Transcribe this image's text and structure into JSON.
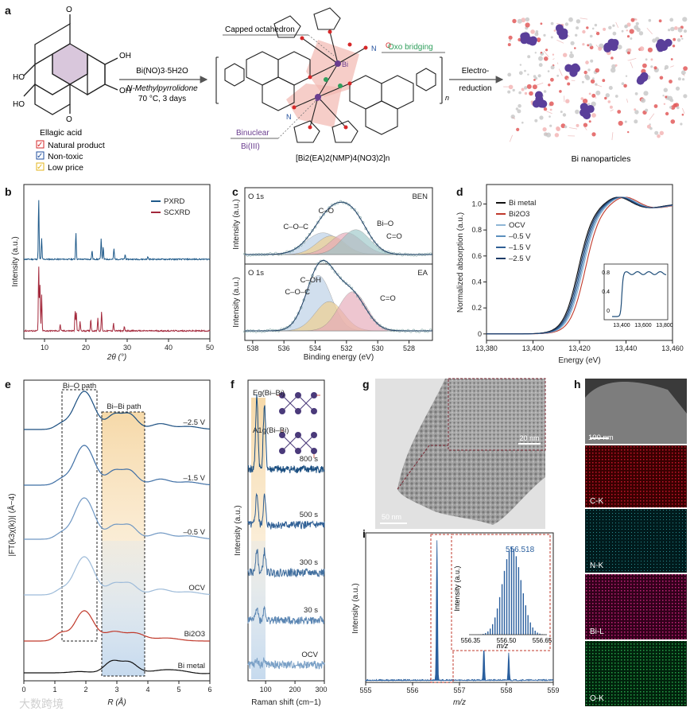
{
  "panel_labels": [
    "a",
    "b",
    "c",
    "d",
    "e",
    "f",
    "g",
    "h",
    "i"
  ],
  "panel_a": {
    "reactant_name": "Ellagic acid",
    "oh_labels": [
      "OH",
      "HO",
      "HO",
      "OH"
    ],
    "ring_o": [
      "O",
      "O",
      "O",
      "O"
    ],
    "reagent": "Bi(NO)3·5H2O",
    "solvent": "N-Methylpyrrolidone",
    "conditions": "70 °C, 3 days",
    "checklist": [
      {
        "mark": "✓",
        "text": "Natural product",
        "color": "#d62728"
      },
      {
        "mark": "✓",
        "text": "Non-toxic",
        "color": "#1f4e9c"
      },
      {
        "mark": "✓",
        "text": "Low price",
        "color": "#e3b51c"
      }
    ],
    "capped_octahedron": "Capped octahedron",
    "oxo_bridging": "Oxo bridging",
    "binuclear": "Binuclear",
    "bi_iii": "Bi(III)",
    "bi_atom": "Bi",
    "n_atom": "N",
    "o_atom": "O",
    "polymer_n": "n",
    "formula": "[Bi2(EA)2(NMP)4(NO3)2]n",
    "arrow2_line1": "Electro-",
    "arrow2_line2": "reduction",
    "product": "Bi nanoparticles"
  },
  "chart_data": [
    {
      "panel": "b",
      "type": "line",
      "xlabel": "2θ (°)",
      "ylabel": "Intensity (a.u.)",
      "xlim": [
        5,
        50
      ],
      "xticks": [
        10,
        20,
        30,
        40,
        50
      ],
      "series": [
        {
          "name": "PXRD",
          "color": "#1f5a8a",
          "peaks": [
            [
              8.6,
              1.0
            ],
            [
              9.3,
              0.35
            ],
            [
              17.6,
              0.45
            ],
            [
              21.5,
              0.15
            ],
            [
              23.7,
              0.35
            ],
            [
              24.2,
              0.2
            ],
            [
              26.8,
              0.18
            ],
            [
              29.5,
              0.08
            ],
            [
              35.0,
              0.05
            ]
          ]
        },
        {
          "name": "SCXRD",
          "color": "#a3283b",
          "peaks": [
            [
              8.6,
              1.0
            ],
            [
              8.9,
              0.7
            ],
            [
              9.3,
              0.55
            ],
            [
              13.8,
              0.1
            ],
            [
              17.4,
              0.3
            ],
            [
              17.7,
              0.28
            ],
            [
              18.6,
              0.15
            ],
            [
              21.2,
              0.18
            ],
            [
              22.9,
              0.2
            ],
            [
              23.8,
              0.3
            ],
            [
              26.7,
              0.12
            ],
            [
              29.3,
              0.06
            ]
          ]
        }
      ]
    },
    {
      "panel": "c",
      "type": "line",
      "xlabel": "Binding energy (eV)",
      "ylabel": "Intensity (a.u.)",
      "xlim": [
        538.5,
        526.5
      ],
      "xticks": [
        538,
        536,
        534,
        532,
        530,
        528
      ],
      "subplots": [
        {
          "corner_left": "O 1s",
          "corner_right": "BEN",
          "components": [
            {
              "name": "C–O",
              "center": 533.5,
              "height": 0.35,
              "width": 1.1
            },
            {
              "name": "C–O–C",
              "center": 533.0,
              "height": 0.3,
              "width": 0.9
            },
            {
              "name": "Bi–O",
              "center": 532.0,
              "height": 0.35,
              "width": 1.0
            },
            {
              "name": "C=O",
              "center": 531.4,
              "height": 0.4,
              "width": 0.9
            }
          ]
        },
        {
          "corner_left": "O 1s",
          "corner_right": "EA",
          "components": [
            {
              "name": "C–OH",
              "center": 533.8,
              "height": 0.85,
              "width": 0.85
            },
            {
              "name": "C–O–C",
              "center": 533.1,
              "height": 0.45,
              "width": 0.9
            },
            {
              "name": "C=O",
              "center": 531.6,
              "height": 0.6,
              "width": 0.9
            }
          ]
        }
      ]
    },
    {
      "panel": "d",
      "type": "line",
      "xlabel": "Energy (eV)",
      "ylabel": "Normalized absorption (a.u.)",
      "xlim": [
        13380,
        13460
      ],
      "ylim": [
        -0.05,
        1.15
      ],
      "xticks": [
        "13,380",
        "13,400",
        "13,420",
        "13,440",
        "13,460"
      ],
      "yticks": [
        0,
        0.2,
        0.4,
        0.6,
        0.8,
        1.0
      ],
      "series": [
        {
          "name": "Bi metal",
          "color": "#111111",
          "e0": 13419.5
        },
        {
          "name": "Bi2O3",
          "color": "#c0392b",
          "e0": 13422.5
        },
        {
          "name": "OCV",
          "color": "#8fb6d6",
          "e0": 13421.5
        },
        {
          "name": "–0.5 V",
          "color": "#5b8fbd",
          "e0": 13421.0
        },
        {
          "name": "–1.5 V",
          "color": "#2f5f95",
          "e0": 13420.5
        },
        {
          "name": "–2.5 V",
          "color": "#1d3a66",
          "e0": 13420.0
        }
      ],
      "inset": {
        "xticks": [
          "13,400",
          "13,600",
          "13,800"
        ],
        "yticks": [
          0.8,
          0.4,
          0
        ]
      }
    },
    {
      "panel": "e",
      "type": "line",
      "xlabel": "R (Å)",
      "ylabel": "|FT(k3χ(k))| (Å−4)",
      "xlim": [
        0,
        6
      ],
      "xticks": [
        0,
        1,
        2,
        3,
        4,
        5,
        6
      ],
      "path_labels": [
        "Bi–O path",
        "Bi–Bi path"
      ],
      "series": [
        {
          "name": "–2.5 V",
          "color": "#1a4e80"
        },
        {
          "name": "–1.5 V",
          "color": "#3f6fa5"
        },
        {
          "name": "–0.5 V",
          "color": "#6f97c3"
        },
        {
          "name": "OCV",
          "color": "#9dbbd9"
        },
        {
          "name": "Bi2O3",
          "color": "#c0392b"
        },
        {
          "name": "Bi metal",
          "color": "#111111"
        }
      ]
    },
    {
      "panel": "f",
      "type": "line",
      "xlabel": "Raman shift (cm−1)",
      "ylabel": "Intensity (a.u.)",
      "xlim": [
        40,
        300
      ],
      "xticks": [
        100,
        200,
        300
      ],
      "modes": [
        "Eg(Bi–Bi)",
        "A1g(Bi–Bi)"
      ],
      "series": [
        {
          "name": "800 s",
          "color": "#1a4e80"
        },
        {
          "name": "500 s",
          "color": "#2f5f95"
        },
        {
          "name": "300 s",
          "color": "#43709f"
        },
        {
          "name": "30 s",
          "color": "#5b86b3"
        },
        {
          "name": "OCV",
          "color": "#7aa0c6"
        }
      ]
    },
    {
      "panel": "i",
      "type": "line",
      "xlabel": "m/z",
      "ylabel": "Intensity (a.u.)",
      "xlim": [
        555,
        559
      ],
      "xticks": [
        555,
        556,
        557,
        558,
        559
      ],
      "peaks": [
        [
          556.52,
          1.0
        ],
        [
          557.52,
          0.25
        ],
        [
          558.05,
          0.2
        ]
      ],
      "inset": {
        "value": "556.518",
        "xlabel": "m/z",
        "ylabel": "Intensity (a.u.)",
        "xticks": [
          "556.35",
          "556.50",
          "556.65"
        ]
      }
    }
  ],
  "panel_g": {
    "scale_main": "50 nm",
    "scale_inset": "20 nm"
  },
  "panel_h": {
    "scale": "100 nm",
    "maps": [
      "C-K",
      "N-K",
      "Bi-L",
      "O-K"
    ]
  },
  "watermark": "大数跨境"
}
